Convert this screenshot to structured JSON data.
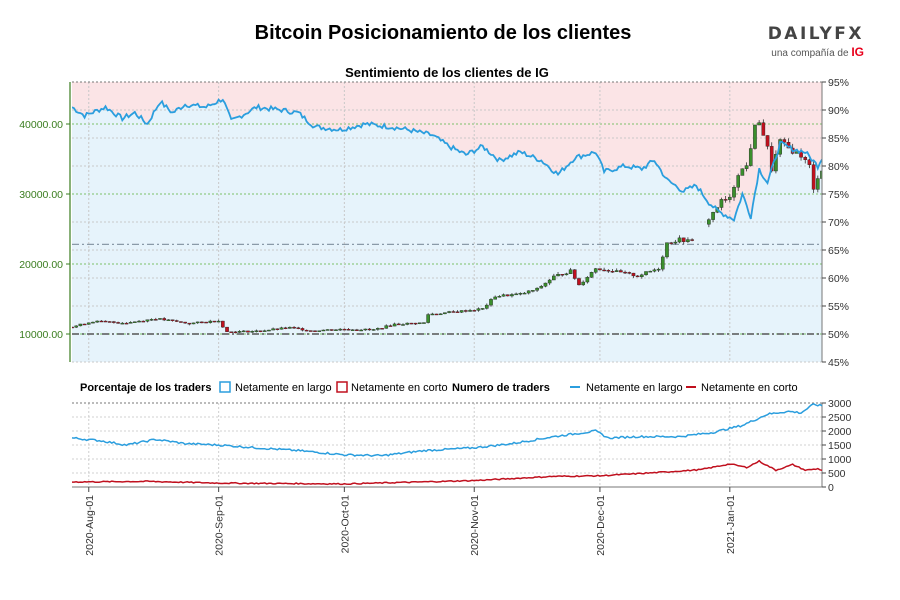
{
  "header": {
    "title": "Bitcoin Posicionamiento de los clientes",
    "logo_word": "DAILYFX",
    "logo_tagline": "una compañía de",
    "logo_brand": "IG"
  },
  "colors": {
    "long": "#2b9ede",
    "short": "#c0101e",
    "candle_up": "#3a8f2c",
    "candle_down": "#c0101e",
    "long_zone": "#e6f3fb",
    "short_zone": "#fbe4e6",
    "price_axis": "#3a7d1f"
  },
  "chart_data": [
    {
      "type": "candlestick",
      "title": "Sentimiento de los clientes de IG",
      "price_axis": {
        "ticks": [
          10000,
          20000,
          30000,
          40000
        ],
        "tick_labels": [
          "10000.00",
          "20000.00",
          "30000.00",
          "40000.00"
        ],
        "range": [
          6000,
          46000
        ]
      },
      "sentiment_axis": {
        "ticks": [
          45,
          50,
          55,
          60,
          65,
          70,
          75,
          80,
          85,
          90,
          95
        ],
        "tick_labels": [
          "45%",
          "50%",
          "55%",
          "60%",
          "65%",
          "70%",
          "75%",
          "80%",
          "85%",
          "90%",
          "95%"
        ],
        "range": [
          45,
          95
        ]
      },
      "reference_lines": [
        50,
        66
      ],
      "x_range": [
        "2020-07-28",
        "2021-01-23"
      ],
      "net_long_pct_keypoints": [
        [
          "2020-07-28",
          90.5
        ],
        [
          "2020-07-31",
          89.0
        ],
        [
          "2020-08-05",
          90.5
        ],
        [
          "2020-08-09",
          88.5
        ],
        [
          "2020-08-12",
          89.5
        ],
        [
          "2020-08-15",
          87.5
        ],
        [
          "2020-08-18",
          91.5
        ],
        [
          "2020-08-21",
          89.5
        ],
        [
          "2020-08-24",
          91.0
        ],
        [
          "2020-08-29",
          90.5
        ],
        [
          "2020-09-02",
          92.0
        ],
        [
          "2020-09-04",
          88.0
        ],
        [
          "2020-09-10",
          90.5
        ],
        [
          "2020-09-16",
          90.0
        ],
        [
          "2020-09-20",
          89.5
        ],
        [
          "2020-09-24",
          87.0
        ],
        [
          "2020-09-30",
          86.5
        ],
        [
          "2020-10-06",
          87.5
        ],
        [
          "2020-10-12",
          87.0
        ],
        [
          "2020-10-16",
          86.5
        ],
        [
          "2020-10-22",
          85.5
        ],
        [
          "2020-10-26",
          83.5
        ],
        [
          "2020-10-30",
          82.0
        ],
        [
          "2020-11-03",
          83.5
        ],
        [
          "2020-11-07",
          81.0
        ],
        [
          "2020-11-12",
          82.5
        ],
        [
          "2020-11-17",
          81.0
        ],
        [
          "2020-11-21",
          78.5
        ],
        [
          "2020-11-25",
          81.5
        ],
        [
          "2020-11-30",
          82.5
        ],
        [
          "2020-12-02",
          79.0
        ],
        [
          "2020-12-07",
          80.0
        ],
        [
          "2020-12-11",
          79.5
        ],
        [
          "2020-12-14",
          81.0
        ],
        [
          "2020-12-17",
          77.5
        ],
        [
          "2020-12-21",
          75.5
        ],
        [
          "2020-12-24",
          76.5
        ],
        [
          "2020-12-27",
          73.5
        ],
        [
          "2020-12-29",
          72.0
        ],
        [
          "2021-01-02",
          70.5
        ],
        [
          "2021-01-04",
          75.0
        ],
        [
          "2021-01-06",
          71.0
        ],
        [
          "2021-01-08",
          79.5
        ],
        [
          "2021-01-10",
          77.0
        ],
        [
          "2021-01-13",
          84.0
        ],
        [
          "2021-01-16",
          83.0
        ],
        [
          "2021-01-19",
          82.5
        ],
        [
          "2021-01-22",
          80.0
        ],
        [
          "2021-01-23",
          81.5
        ]
      ],
      "price_close_keypoints": [
        [
          "2020-07-28",
          11000
        ],
        [
          "2020-08-02",
          11800
        ],
        [
          "2020-08-10",
          11600
        ],
        [
          "2020-08-17",
          12200
        ],
        [
          "2020-08-25",
          11500
        ],
        [
          "2020-09-01",
          11900
        ],
        [
          "2020-09-03",
          10300
        ],
        [
          "2020-09-10",
          10400
        ],
        [
          "2020-09-18",
          10900
        ],
        [
          "2020-09-23",
          10500
        ],
        [
          "2020-10-01",
          10700
        ],
        [
          "2020-10-08",
          10600
        ],
        [
          "2020-10-13",
          11400
        ],
        [
          "2020-10-20",
          11600
        ],
        [
          "2020-10-21",
          12800
        ],
        [
          "2020-10-28",
          13200
        ],
        [
          "2020-11-03",
          13600
        ],
        [
          "2020-11-06",
          15400
        ],
        [
          "2020-11-12",
          15700
        ],
        [
          "2020-11-16",
          16400
        ],
        [
          "2020-11-20",
          18200
        ],
        [
          "2020-11-24",
          19000
        ],
        [
          "2020-11-26",
          17000
        ],
        [
          "2020-11-30",
          19400
        ],
        [
          "2020-12-03",
          19100
        ],
        [
          "2020-12-10",
          18300
        ],
        [
          "2020-12-15",
          19400
        ],
        [
          "2020-12-17",
          23000
        ],
        [
          "2020-12-20",
          23500
        ],
        [
          "2020-12-23",
          23200
        ],
        [
          "2020-12-27",
          26500
        ],
        [
          "2020-12-30",
          29000
        ],
        [
          "2021-01-01",
          29300
        ],
        [
          "2021-01-03",
          33000
        ],
        [
          "2021-01-05",
          34000
        ],
        [
          "2021-01-07",
          39500
        ],
        [
          "2021-01-08",
          40500
        ],
        [
          "2021-01-10",
          36500
        ],
        [
          "2021-01-11",
          33500
        ],
        [
          "2021-01-13",
          37500
        ],
        [
          "2021-01-15",
          36500
        ],
        [
          "2021-01-18",
          35500
        ],
        [
          "2021-01-20",
          34000
        ],
        [
          "2021-01-21",
          30500
        ],
        [
          "2021-01-22",
          32500
        ],
        [
          "2021-01-23",
          33500
        ]
      ],
      "gaps": [
        [
          "2020-12-24",
          "2020-12-26"
        ]
      ]
    },
    {
      "type": "line",
      "title": "Numero de traders",
      "y_axis": {
        "ticks": [
          0,
          500,
          1000,
          1500,
          2000,
          2500,
          3000
        ],
        "tick_labels": [
          "0",
          "500",
          "1000",
          "1500",
          "2000",
          "2500",
          "3000"
        ],
        "range": [
          0,
          3000
        ]
      },
      "x_ticks": [
        "2020-Aug-01",
        "2020-Sep-01",
        "2020-Oct-01",
        "2020-Nov-01",
        "2020-Dec-01",
        "2021-Jan-01"
      ],
      "series": [
        {
          "name": "Netamente en largo",
          "keypoints": [
            [
              "2020-07-28",
              1750
            ],
            [
              "2020-08-04",
              1650
            ],
            [
              "2020-08-10",
              1500
            ],
            [
              "2020-08-17",
              1700
            ],
            [
              "2020-08-24",
              1550
            ],
            [
              "2020-09-01",
              1500
            ],
            [
              "2020-09-10",
              1400
            ],
            [
              "2020-09-20",
              1300
            ],
            [
              "2020-10-01",
              1150
            ],
            [
              "2020-10-10",
              1120
            ],
            [
              "2020-10-20",
              1300
            ],
            [
              "2020-11-01",
              1400
            ],
            [
              "2020-11-10",
              1550
            ],
            [
              "2020-11-20",
              1800
            ],
            [
              "2020-11-30",
              2000
            ],
            [
              "2020-12-03",
              1750
            ],
            [
              "2020-12-10",
              1800
            ],
            [
              "2020-12-20",
              1800
            ],
            [
              "2020-12-28",
              1950
            ],
            [
              "2021-01-04",
              2200
            ],
            [
              "2021-01-10",
              2600
            ],
            [
              "2021-01-15",
              2700
            ],
            [
              "2021-01-18",
              2650
            ],
            [
              "2021-01-21",
              2950
            ],
            [
              "2021-01-23",
              2900
            ]
          ]
        },
        {
          "name": "Netamente en corto",
          "keypoints": [
            [
              "2020-07-28",
              180
            ],
            [
              "2020-08-15",
              200
            ],
            [
              "2020-09-01",
              140
            ],
            [
              "2020-10-01",
              110
            ],
            [
              "2020-11-01",
              230
            ],
            [
              "2020-11-20",
              380
            ],
            [
              "2020-12-01",
              400
            ],
            [
              "2020-12-15",
              520
            ],
            [
              "2020-12-25",
              620
            ],
            [
              "2021-01-01",
              820
            ],
            [
              "2021-01-05",
              700
            ],
            [
              "2021-01-08",
              920
            ],
            [
              "2021-01-12",
              600
            ],
            [
              "2021-01-16",
              800
            ],
            [
              "2021-01-19",
              600
            ],
            [
              "2021-01-22",
              650
            ],
            [
              "2021-01-23",
              600
            ]
          ]
        }
      ]
    }
  ],
  "legend": {
    "pct_title": "Porcentaje de los traders",
    "pct_long": "Netamente en largo",
    "pct_short": "Netamente en corto",
    "count_title": "Numero de traders",
    "count_long": "Netamente en largo",
    "count_short": "Netamente en corto"
  }
}
